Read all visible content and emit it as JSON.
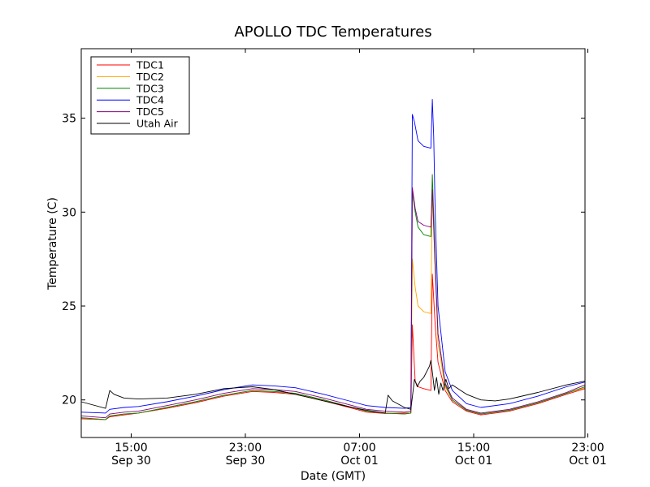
{
  "chart_data": {
    "type": "line",
    "title": "APOLLO TDC Temperatures",
    "xlabel": "Date (GMT)",
    "ylabel": "Temperature (C)",
    "xlim_hours": [
      0,
      35.3
    ],
    "ylim": [
      18,
      38.7
    ],
    "y_ticks": [
      20,
      25,
      30,
      35
    ],
    "x_ticks": [
      {
        "hour": 3.5,
        "time": "15:00",
        "date": "Sep 30"
      },
      {
        "hour": 11.5,
        "time": "23:00",
        "date": "Sep 30"
      },
      {
        "hour": 19.5,
        "time": "07:00",
        "date": "Oct 01"
      },
      {
        "hour": 27.5,
        "time": "15:00",
        "date": "Oct 01"
      },
      {
        "hour": 35.5,
        "time": "23:00",
        "date": "Oct 01"
      }
    ],
    "legend_position": "top-left",
    "series": [
      {
        "name": "TDC1",
        "color": "#ff0000",
        "points": [
          [
            0,
            19.0
          ],
          [
            1.7,
            18.95
          ],
          [
            2,
            19.1
          ],
          [
            3,
            19.2
          ],
          [
            4,
            19.3
          ],
          [
            6,
            19.55
          ],
          [
            8,
            19.85
          ],
          [
            10,
            20.2
          ],
          [
            12,
            20.45
          ],
          [
            13.5,
            20.4
          ],
          [
            15,
            20.3
          ],
          [
            17,
            19.95
          ],
          [
            19,
            19.55
          ],
          [
            20,
            19.35
          ],
          [
            21.3,
            19.28
          ],
          [
            22.65,
            19.3
          ],
          [
            23.1,
            19.3
          ],
          [
            23.2,
            24.0
          ],
          [
            23.4,
            21.0
          ],
          [
            23.6,
            20.7
          ],
          [
            24,
            20.6
          ],
          [
            24.5,
            20.5
          ],
          [
            24.6,
            26.7
          ],
          [
            24.8,
            24.0
          ],
          [
            25,
            22.0
          ],
          [
            25.5,
            20.5
          ],
          [
            26,
            19.9
          ],
          [
            27,
            19.4
          ],
          [
            28,
            19.2
          ],
          [
            30,
            19.4
          ],
          [
            32,
            19.8
          ],
          [
            34,
            20.3
          ],
          [
            35.3,
            20.6
          ]
        ]
      },
      {
        "name": "TDC2",
        "color": "#ffa500",
        "points": [
          [
            0,
            19.05
          ],
          [
            1.7,
            18.95
          ],
          [
            2,
            19.15
          ],
          [
            3,
            19.25
          ],
          [
            4,
            19.3
          ],
          [
            6,
            19.6
          ],
          [
            8,
            19.9
          ],
          [
            10,
            20.25
          ],
          [
            12,
            20.5
          ],
          [
            13.5,
            20.45
          ],
          [
            15,
            20.35
          ],
          [
            17,
            20.0
          ],
          [
            19,
            19.6
          ],
          [
            20,
            19.4
          ],
          [
            21.3,
            19.3
          ],
          [
            22.65,
            19.25
          ],
          [
            23.1,
            19.3
          ],
          [
            23.2,
            27.5
          ],
          [
            23.4,
            26.0
          ],
          [
            23.6,
            25.0
          ],
          [
            24,
            24.7
          ],
          [
            24.5,
            24.6
          ],
          [
            24.6,
            31.2
          ],
          [
            24.8,
            27.0
          ],
          [
            25,
            23.0
          ],
          [
            25.5,
            20.7
          ],
          [
            26,
            20.0
          ],
          [
            27,
            19.45
          ],
          [
            28,
            19.25
          ],
          [
            30,
            19.45
          ],
          [
            32,
            19.85
          ],
          [
            34,
            20.35
          ],
          [
            35.3,
            20.65
          ]
        ]
      },
      {
        "name": "TDC3",
        "color": "#008000",
        "points": [
          [
            0,
            19.05
          ],
          [
            1.7,
            18.95
          ],
          [
            2,
            19.15
          ],
          [
            3,
            19.25
          ],
          [
            4,
            19.3
          ],
          [
            6,
            19.6
          ],
          [
            8,
            19.9
          ],
          [
            10,
            20.25
          ],
          [
            12,
            20.5
          ],
          [
            13.5,
            20.45
          ],
          [
            15,
            20.35
          ],
          [
            17,
            20.0
          ],
          [
            19,
            19.6
          ],
          [
            20,
            19.4
          ],
          [
            21.3,
            19.3
          ],
          [
            22.65,
            19.25
          ],
          [
            23.1,
            19.3
          ],
          [
            23.2,
            31.1
          ],
          [
            23.4,
            30.0
          ],
          [
            23.6,
            29.2
          ],
          [
            24,
            28.8
          ],
          [
            24.5,
            28.7
          ],
          [
            24.6,
            32.0
          ],
          [
            24.8,
            27.5
          ],
          [
            25,
            23.5
          ],
          [
            25.5,
            20.8
          ],
          [
            26,
            20.0
          ],
          [
            27,
            19.45
          ],
          [
            28,
            19.25
          ],
          [
            30,
            19.45
          ],
          [
            32,
            19.85
          ],
          [
            34,
            20.35
          ],
          [
            35.3,
            20.7
          ]
        ]
      },
      {
        "name": "TDC4",
        "color": "#0000ff",
        "points": [
          [
            0,
            19.35
          ],
          [
            1.7,
            19.3
          ],
          [
            2,
            19.5
          ],
          [
            3,
            19.6
          ],
          [
            4,
            19.65
          ],
          [
            6,
            19.9
          ],
          [
            8,
            20.2
          ],
          [
            10,
            20.55
          ],
          [
            12,
            20.8
          ],
          [
            13.5,
            20.75
          ],
          [
            15,
            20.65
          ],
          [
            17,
            20.3
          ],
          [
            19,
            19.9
          ],
          [
            20,
            19.7
          ],
          [
            21.3,
            19.6
          ],
          [
            22.65,
            19.55
          ],
          [
            23.1,
            19.6
          ],
          [
            23.2,
            35.2
          ],
          [
            23.35,
            34.8
          ],
          [
            23.6,
            33.8
          ],
          [
            24,
            33.5
          ],
          [
            24.5,
            33.4
          ],
          [
            24.6,
            36.0
          ],
          [
            24.7,
            34.0
          ],
          [
            24.8,
            30.0
          ],
          [
            25,
            25.0
          ],
          [
            25.5,
            21.5
          ],
          [
            26,
            20.5
          ],
          [
            27,
            19.8
          ],
          [
            28,
            19.6
          ],
          [
            30,
            19.8
          ],
          [
            32,
            20.2
          ],
          [
            34,
            20.7
          ],
          [
            35.3,
            20.95
          ]
        ]
      },
      {
        "name": "TDC5",
        "color": "#800080",
        "points": [
          [
            0,
            19.15
          ],
          [
            1.7,
            19.05
          ],
          [
            2,
            19.25
          ],
          [
            3,
            19.35
          ],
          [
            4,
            19.4
          ],
          [
            6,
            19.7
          ],
          [
            8,
            20.0
          ],
          [
            10,
            20.35
          ],
          [
            12,
            20.6
          ],
          [
            13.5,
            20.55
          ],
          [
            15,
            20.45
          ],
          [
            17,
            20.1
          ],
          [
            19,
            19.7
          ],
          [
            20,
            19.5
          ],
          [
            21.3,
            19.4
          ],
          [
            22.65,
            19.35
          ],
          [
            23.1,
            19.4
          ],
          [
            23.2,
            31.3
          ],
          [
            23.4,
            30.2
          ],
          [
            23.6,
            29.5
          ],
          [
            24,
            29.3
          ],
          [
            24.5,
            29.2
          ],
          [
            24.6,
            31.2
          ],
          [
            24.8,
            27.0
          ],
          [
            25,
            23.5
          ],
          [
            25.5,
            20.9
          ],
          [
            26,
            20.1
          ],
          [
            27,
            19.5
          ],
          [
            28,
            19.3
          ],
          [
            30,
            19.5
          ],
          [
            32,
            19.9
          ],
          [
            34,
            20.4
          ],
          [
            35.3,
            20.8
          ]
        ]
      },
      {
        "name": "Utah Air",
        "color": "#000000",
        "points": [
          [
            0,
            19.9
          ],
          [
            1.7,
            19.55
          ],
          [
            2,
            20.5
          ],
          [
            2.3,
            20.3
          ],
          [
            3,
            20.1
          ],
          [
            4,
            20.05
          ],
          [
            6,
            20.1
          ],
          [
            8,
            20.3
          ],
          [
            10,
            20.6
          ],
          [
            12,
            20.7
          ],
          [
            13.5,
            20.55
          ],
          [
            15,
            20.3
          ],
          [
            17,
            19.95
          ],
          [
            19,
            19.6
          ],
          [
            20,
            19.45
          ],
          [
            21.3,
            19.3
          ],
          [
            21.5,
            20.25
          ],
          [
            21.8,
            19.95
          ],
          [
            22.65,
            19.6
          ],
          [
            23.1,
            19.5
          ],
          [
            23.35,
            21.1
          ],
          [
            23.55,
            20.7
          ],
          [
            23.75,
            21.0
          ],
          [
            24,
            21.2
          ],
          [
            24.4,
            21.8
          ],
          [
            24.5,
            22.1
          ],
          [
            24.6,
            21.5
          ],
          [
            24.75,
            20.5
          ],
          [
            24.9,
            21.2
          ],
          [
            25.05,
            20.3
          ],
          [
            25.2,
            20.9
          ],
          [
            25.35,
            20.5
          ],
          [
            25.55,
            21.1
          ],
          [
            25.75,
            20.6
          ],
          [
            26,
            20.8
          ],
          [
            27,
            20.3
          ],
          [
            28,
            20.0
          ],
          [
            29,
            19.95
          ],
          [
            30,
            20.05
          ],
          [
            32,
            20.4
          ],
          [
            34,
            20.8
          ],
          [
            35.3,
            21.0
          ]
        ]
      }
    ]
  }
}
